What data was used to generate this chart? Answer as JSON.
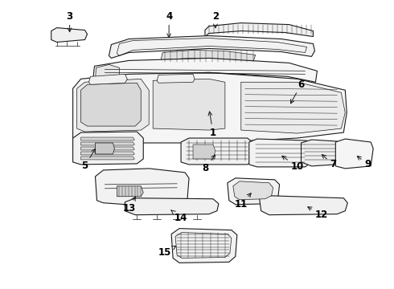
{
  "bg_color": "#ffffff",
  "line_color": "#1a1a1a",
  "label_color": "#000000",
  "label_fontsize": 8.5,
  "fig_width": 4.9,
  "fig_height": 3.6,
  "dpi": 100,
  "lw_main": 0.8,
  "lw_thin": 0.5,
  "lw_hatch": 0.35,
  "gray_fill": "#e8e8e8",
  "hatch_fill": "#d0d0d0",
  "white_fill": "#ffffff",
  "light_fill": "#f2f2f2"
}
